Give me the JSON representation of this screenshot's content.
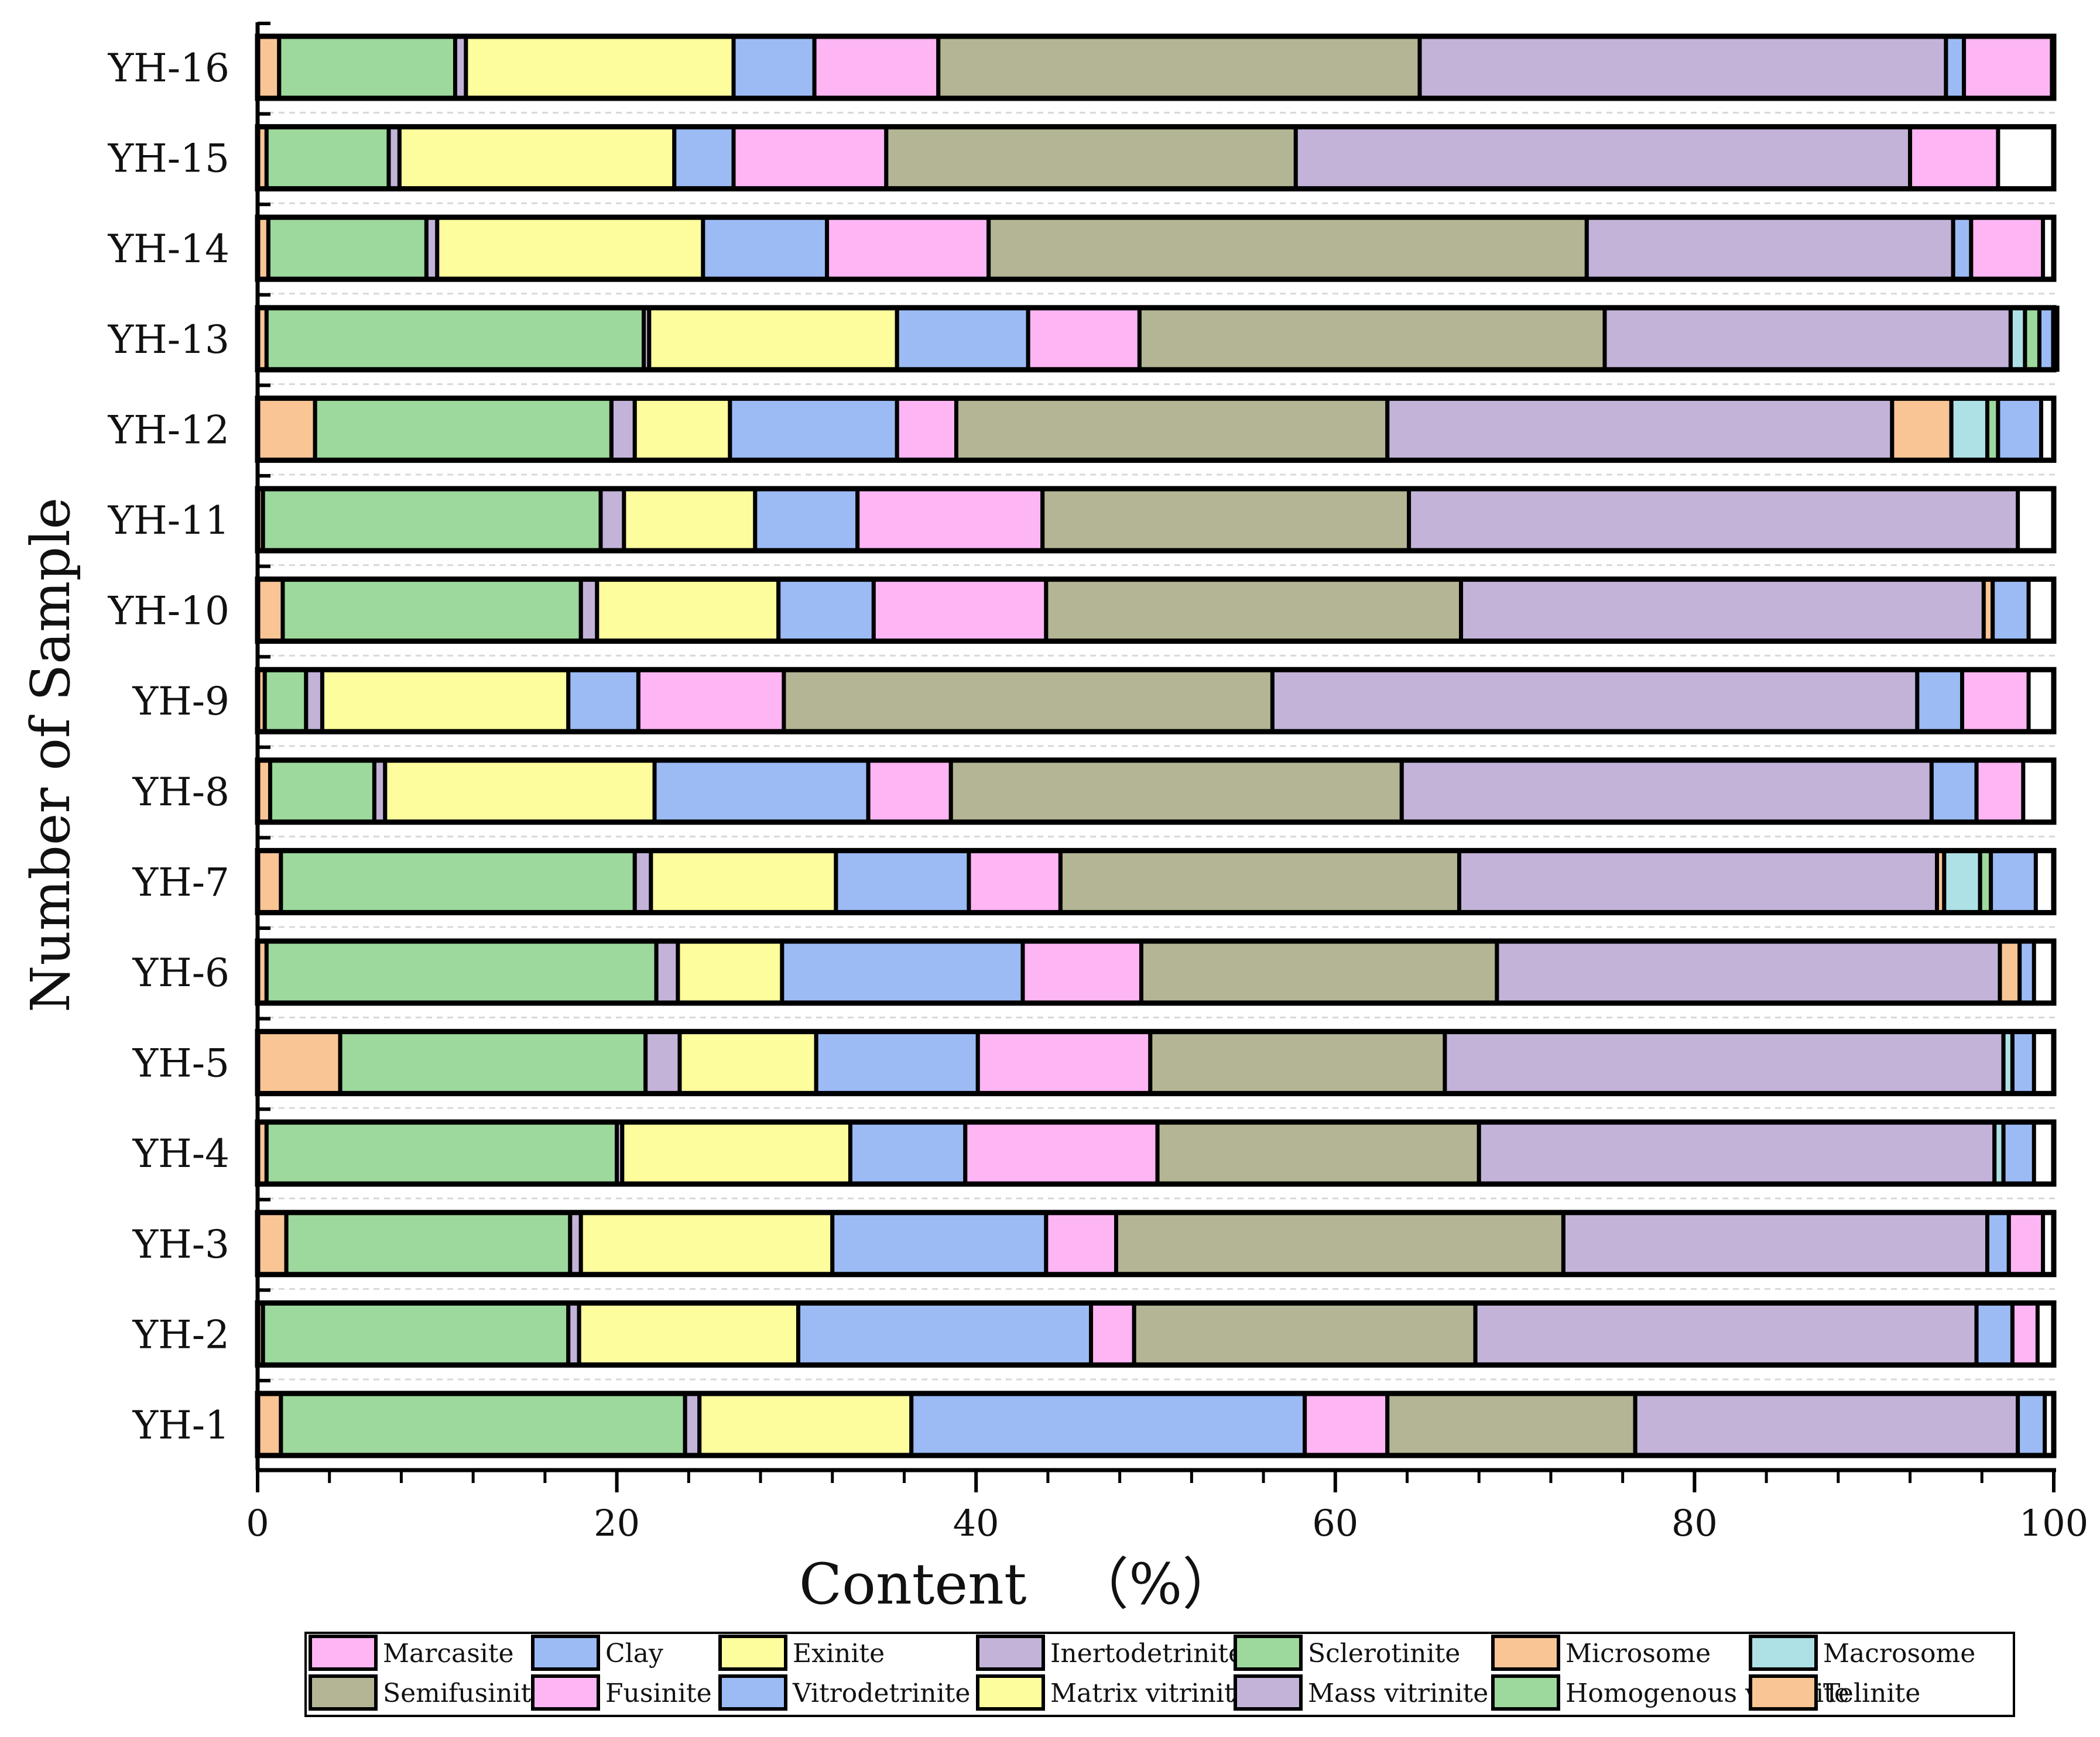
{
  "chart_data": {
    "type": "bar",
    "orientation": "horizontal",
    "stacked": true,
    "xlabel": "Content 　（%）",
    "ylabel": "Number of Sample",
    "xlim": [
      0,
      100
    ],
    "xticks": [
      "0",
      "20",
      "40",
      "60",
      "80",
      "100"
    ],
    "categories": [
      "YH-16",
      "YH-15",
      "YH-14",
      "YH-13",
      "YH-12",
      "YH-11",
      "YH-10",
      "YH-9",
      "YH-8",
      "YH-7",
      "YH-6",
      "YH-5",
      "YH-4",
      "YH-3",
      "YH-2",
      "YH-1"
    ],
    "stack_order": [
      "Telinite",
      "Homogenous vitrinite",
      "Sclerotinite",
      "Mass vitrinite",
      "Matrix vitrinite",
      "Clay",
      "Vitrodetrinite",
      "Marcasite",
      "Fusinite",
      "Semifusinite",
      "Inertodetrinite",
      "Microsome",
      "Macrosome",
      "Exinite"
    ],
    "series": [
      {
        "name": "Telinite",
        "color": "#f9c595",
        "values": [
          1.2,
          0.5,
          0.6,
          0.5,
          3.2,
          0.3,
          1.4,
          0.4,
          0.7,
          1.3,
          0.5,
          4.6,
          0.5,
          1.6,
          0.3,
          1.3
        ]
      },
      {
        "name": "Homogenous vitrinite",
        "color": "#1a1a1a",
        "values": [
          0,
          0,
          0,
          0,
          0,
          0,
          0,
          0,
          0,
          0,
          0,
          0,
          0,
          0,
          0,
          0
        ]
      },
      {
        "name": "Sclerotinite",
        "color": "#9dd89d",
        "values": [
          9.8,
          6.8,
          8.8,
          21.0,
          16.5,
          18.8,
          16.6,
          2.3,
          5.8,
          19.7,
          21.7,
          17.0,
          19.5,
          15.8,
          17.0,
          22.5
        ]
      },
      {
        "name": "Mass vitrinite",
        "color": "#c3b3d9",
        "values": [
          0.6,
          0.6,
          0.6,
          0.3,
          1.3,
          1.3,
          0.9,
          0.9,
          0.6,
          0.9,
          1.2,
          1.9,
          0.3,
          0.6,
          0.6,
          0.8
        ]
      },
      {
        "name": "Matrix vitrinite",
        "color": "#fdfd9e",
        "values": [
          14.9,
          15.3,
          14.8,
          13.8,
          5.3,
          7.3,
          10.1,
          13.7,
          15.0,
          10.3,
          5.8,
          7.6,
          12.7,
          14.0,
          12.2,
          11.8
        ]
      },
      {
        "name": "Clay",
        "color": "#9cbbf5",
        "values": [
          4.5,
          3.3,
          6.9,
          7.3,
          9.3,
          5.7,
          5.3,
          3.9,
          11.9,
          7.4,
          13.4,
          9.0,
          6.4,
          11.9,
          16.3,
          21.9
        ]
      },
      {
        "name": "Vitrodetrinite",
        "color": "#9cbbf5",
        "values": [
          0,
          0,
          0,
          0,
          0,
          0,
          0,
          0,
          0,
          0,
          0,
          0,
          0,
          0,
          0,
          0
        ]
      },
      {
        "name": "Marcasite",
        "color": "#fdb5f3",
        "values": [
          6.9,
          8.5,
          9.0,
          6.2,
          3.3,
          10.3,
          9.6,
          8.1,
          4.6,
          5.1,
          6.6,
          9.6,
          10.7,
          3.9,
          2.4,
          4.6
        ]
      },
      {
        "name": "Fusinite",
        "color": "#fdb5f3",
        "values": [
          0,
          0,
          0,
          0,
          0,
          0,
          0,
          0,
          0,
          0,
          0,
          0,
          0,
          0,
          0,
          0
        ]
      },
      {
        "name": "Semifusinite",
        "color": "#b3b594",
        "values": [
          26.8,
          22.8,
          33.3,
          25.9,
          24.0,
          20.4,
          23.1,
          27.2,
          25.1,
          22.2,
          19.8,
          16.4,
          17.9,
          24.9,
          19.0,
          13.8
        ]
      },
      {
        "name": "Inertodetrinite",
        "color": "#c3b3d9",
        "values": [
          29.3,
          34.2,
          20.4,
          22.6,
          28.1,
          33.9,
          29.1,
          35.9,
          29.5,
          26.6,
          28.0,
          31.1,
          28.7,
          23.6,
          27.9,
          21.3
        ]
      },
      {
        "name": "Microsome",
        "color": "#f9c595",
        "values": [
          0,
          0,
          0,
          0,
          3.3,
          0,
          0.5,
          0,
          0,
          0.4,
          1.1,
          0,
          0,
          0,
          0,
          0
        ]
      },
      {
        "name": "Macrosome",
        "color": "#aee1e6",
        "values": [
          0,
          0,
          0,
          0,
          2.0,
          0,
          0,
          0,
          0,
          2.0,
          0,
          0.5,
          0.5,
          0,
          0,
          0
        ]
      },
      {
        "name": "Exinite",
        "color": "#fdfd9e",
        "values": [
          0,
          0,
          0,
          0,
          0,
          0,
          0,
          0,
          0,
          0,
          0,
          0,
          0,
          0,
          0,
          0
        ]
      }
    ],
    "fill_by_series": {
      "Exinite": {
        "color": "#fdfd9e",
        "values": [
          0,
          0,
          0,
          0,
          0,
          0,
          0,
          0,
          0,
          0,
          0,
          0,
          0,
          0,
          0,
          0
        ]
      }
    },
    "tail_segments": [
      {
        "name": "Macrosome-2",
        "color": "#aee1e6",
        "values": [
          0,
          0,
          0,
          0.8,
          0,
          0,
          0,
          0,
          0,
          0,
          0,
          0,
          0,
          0,
          0,
          0
        ]
      },
      {
        "name": "Homogenous vitrinite-2",
        "color": "#9dd89d",
        "values": [
          0,
          0,
          0,
          0.8,
          0.6,
          0,
          0,
          0,
          0,
          0.6,
          0,
          0,
          0,
          0,
          0,
          0
        ]
      },
      {
        "name": "Inertodetrinite-2",
        "color": "#c3b3d9",
        "values": [
          0,
          0,
          0,
          0,
          0,
          0,
          0,
          0,
          0,
          0,
          0,
          0,
          0,
          0,
          0,
          0
        ]
      },
      {
        "name": "Clay-2",
        "color": "#9cbbf5",
        "values": [
          1.0,
          0,
          1.0,
          1.0,
          2.4,
          0,
          2.0,
          2.5,
          2.5,
          2.5,
          0.8,
          1.2,
          1.7,
          1.2,
          2.0,
          1.5
        ]
      },
      {
        "name": "Fusinite-2",
        "color": "#fdb5f3",
        "values": [
          4.9,
          4.9,
          4.0,
          0,
          0,
          0,
          0,
          3.7,
          2.6,
          0,
          0,
          0,
          0,
          1.9,
          1.4,
          0
        ]
      }
    ],
    "legend": {
      "placement": "bottom",
      "rows": [
        [
          {
            "label": "Marcasite",
            "color": "#fdb5f3"
          },
          {
            "label": "Clay",
            "color": "#9cbbf5"
          },
          {
            "label": "Exinite",
            "color": "#fdfd9e"
          },
          {
            "label": "Inertodetrinite",
            "color": "#c3b3d9"
          },
          {
            "label": "Sclerotinite",
            "color": "#9dd89d"
          },
          {
            "label": "Microsome",
            "color": "#f9c595"
          },
          {
            "label": "Macrosome",
            "color": "#aee1e6"
          }
        ],
        [
          {
            "label": "Semifusinite",
            "color": "#b3b594"
          },
          {
            "label": "Fusinite",
            "color": "#fdb5f3"
          },
          {
            "label": "Vitrodetrinite",
            "color": "#9cbbf5"
          },
          {
            "label": "Matrix vitrinite",
            "color": "#fdfd9e"
          },
          {
            "label": "Mass vitrinite",
            "color": "#c3b3d9"
          },
          {
            "label": "Homogenous vitrinite",
            "color": "#9dd89d"
          },
          {
            "label": "Telinite",
            "color": "#f9c595"
          }
        ]
      ]
    }
  }
}
